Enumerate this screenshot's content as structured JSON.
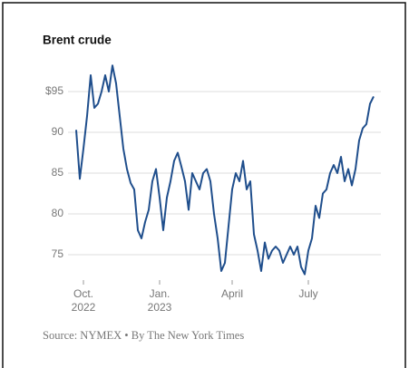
{
  "chart_data": {
    "type": "line",
    "title": "Brent crude",
    "source": "Source: NYMEX • By The New York Times",
    "categories": [
      null,
      null,
      "Oct. 2022",
      null,
      null,
      null,
      null,
      null,
      null,
      null,
      null,
      null,
      null,
      null,
      null,
      null,
      null,
      null,
      null,
      null,
      null,
      null,
      null,
      "Jan. 2023",
      null,
      null,
      null,
      null,
      null,
      null,
      null,
      null,
      null,
      null,
      null,
      null,
      null,
      null,
      null,
      null,
      null,
      null,
      null,
      "April",
      null,
      null,
      null,
      null,
      null,
      null,
      null,
      null,
      null,
      null,
      null,
      null,
      null,
      null,
      null,
      null,
      null,
      null,
      null,
      null,
      "July",
      null,
      null,
      null,
      null,
      null,
      null,
      null,
      null,
      null,
      null,
      null,
      null,
      null,
      null,
      null,
      null,
      null,
      null
    ],
    "series": [
      {
        "name": "Brent crude",
        "color": "#1f4e8c",
        "values": [
          90.3,
          84.3,
          88,
          92,
          97,
          93,
          93.5,
          95,
          97,
          95,
          98.2,
          96,
          92,
          88,
          85.5,
          83.8,
          83,
          78,
          77,
          79,
          80.5,
          84,
          85.5,
          82,
          78,
          82,
          84,
          86.5,
          87.5,
          85.8,
          84,
          80.5,
          85,
          84,
          83,
          85,
          85.5,
          84,
          80,
          77,
          73,
          74,
          78.5,
          83,
          85,
          84,
          86.5,
          83,
          84,
          77.5,
          75.5,
          73,
          76.5,
          74.5,
          75.5,
          76,
          75.5,
          74,
          75,
          76,
          75,
          76,
          73.5,
          72.6,
          75.5,
          77,
          81,
          79.5,
          82.5,
          83,
          85,
          86,
          85,
          87,
          84,
          85.5,
          83.5,
          85.5,
          89,
          90.5,
          91,
          93.5,
          94.4
        ]
      }
    ],
    "ylim": [
      72,
      99
    ],
    "yticks": [
      {
        "value": 95,
        "label": "$95"
      },
      90,
      85,
      80,
      75
    ],
    "grid": true
  }
}
